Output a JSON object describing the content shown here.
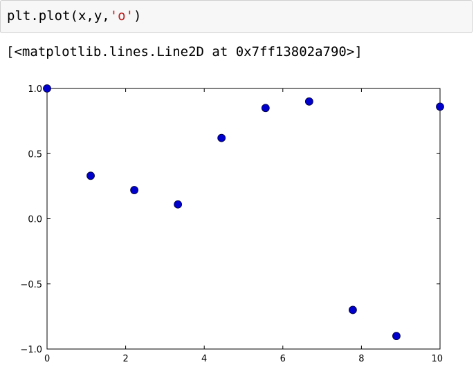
{
  "input": {
    "code_prefix": "plt.plot(x,y,",
    "code_string": "'o'",
    "code_suffix": ")"
  },
  "output": {
    "text": "[<matplotlib.lines.Line2D at 0x7ff13802a790>]"
  },
  "chart_data": {
    "type": "scatter",
    "title": "",
    "xlabel": "",
    "ylabel": "",
    "xlim": [
      0,
      10
    ],
    "ylim": [
      -1.0,
      1.0
    ],
    "xticks": [
      0,
      2,
      4,
      6,
      8,
      10
    ],
    "xtick_labels": [
      "0",
      "2",
      "4",
      "6",
      "8",
      "10"
    ],
    "yticks": [
      1.0,
      0.5,
      0.0,
      -0.5,
      -1.0
    ],
    "ytick_labels": [
      "1.0",
      "0.5",
      "0.0",
      "−0.5",
      "−1.0"
    ],
    "grid": false,
    "marker_color": "#0000cc",
    "series": [
      {
        "x": [
          0,
          1.11,
          2.22,
          3.33,
          4.44,
          5.56,
          6.67,
          7.78,
          8.89,
          10
        ],
        "y": [
          1.0,
          0.33,
          0.22,
          0.11,
          0.62,
          0.85,
          0.9,
          -0.7,
          -0.9,
          0.86
        ]
      }
    ]
  }
}
